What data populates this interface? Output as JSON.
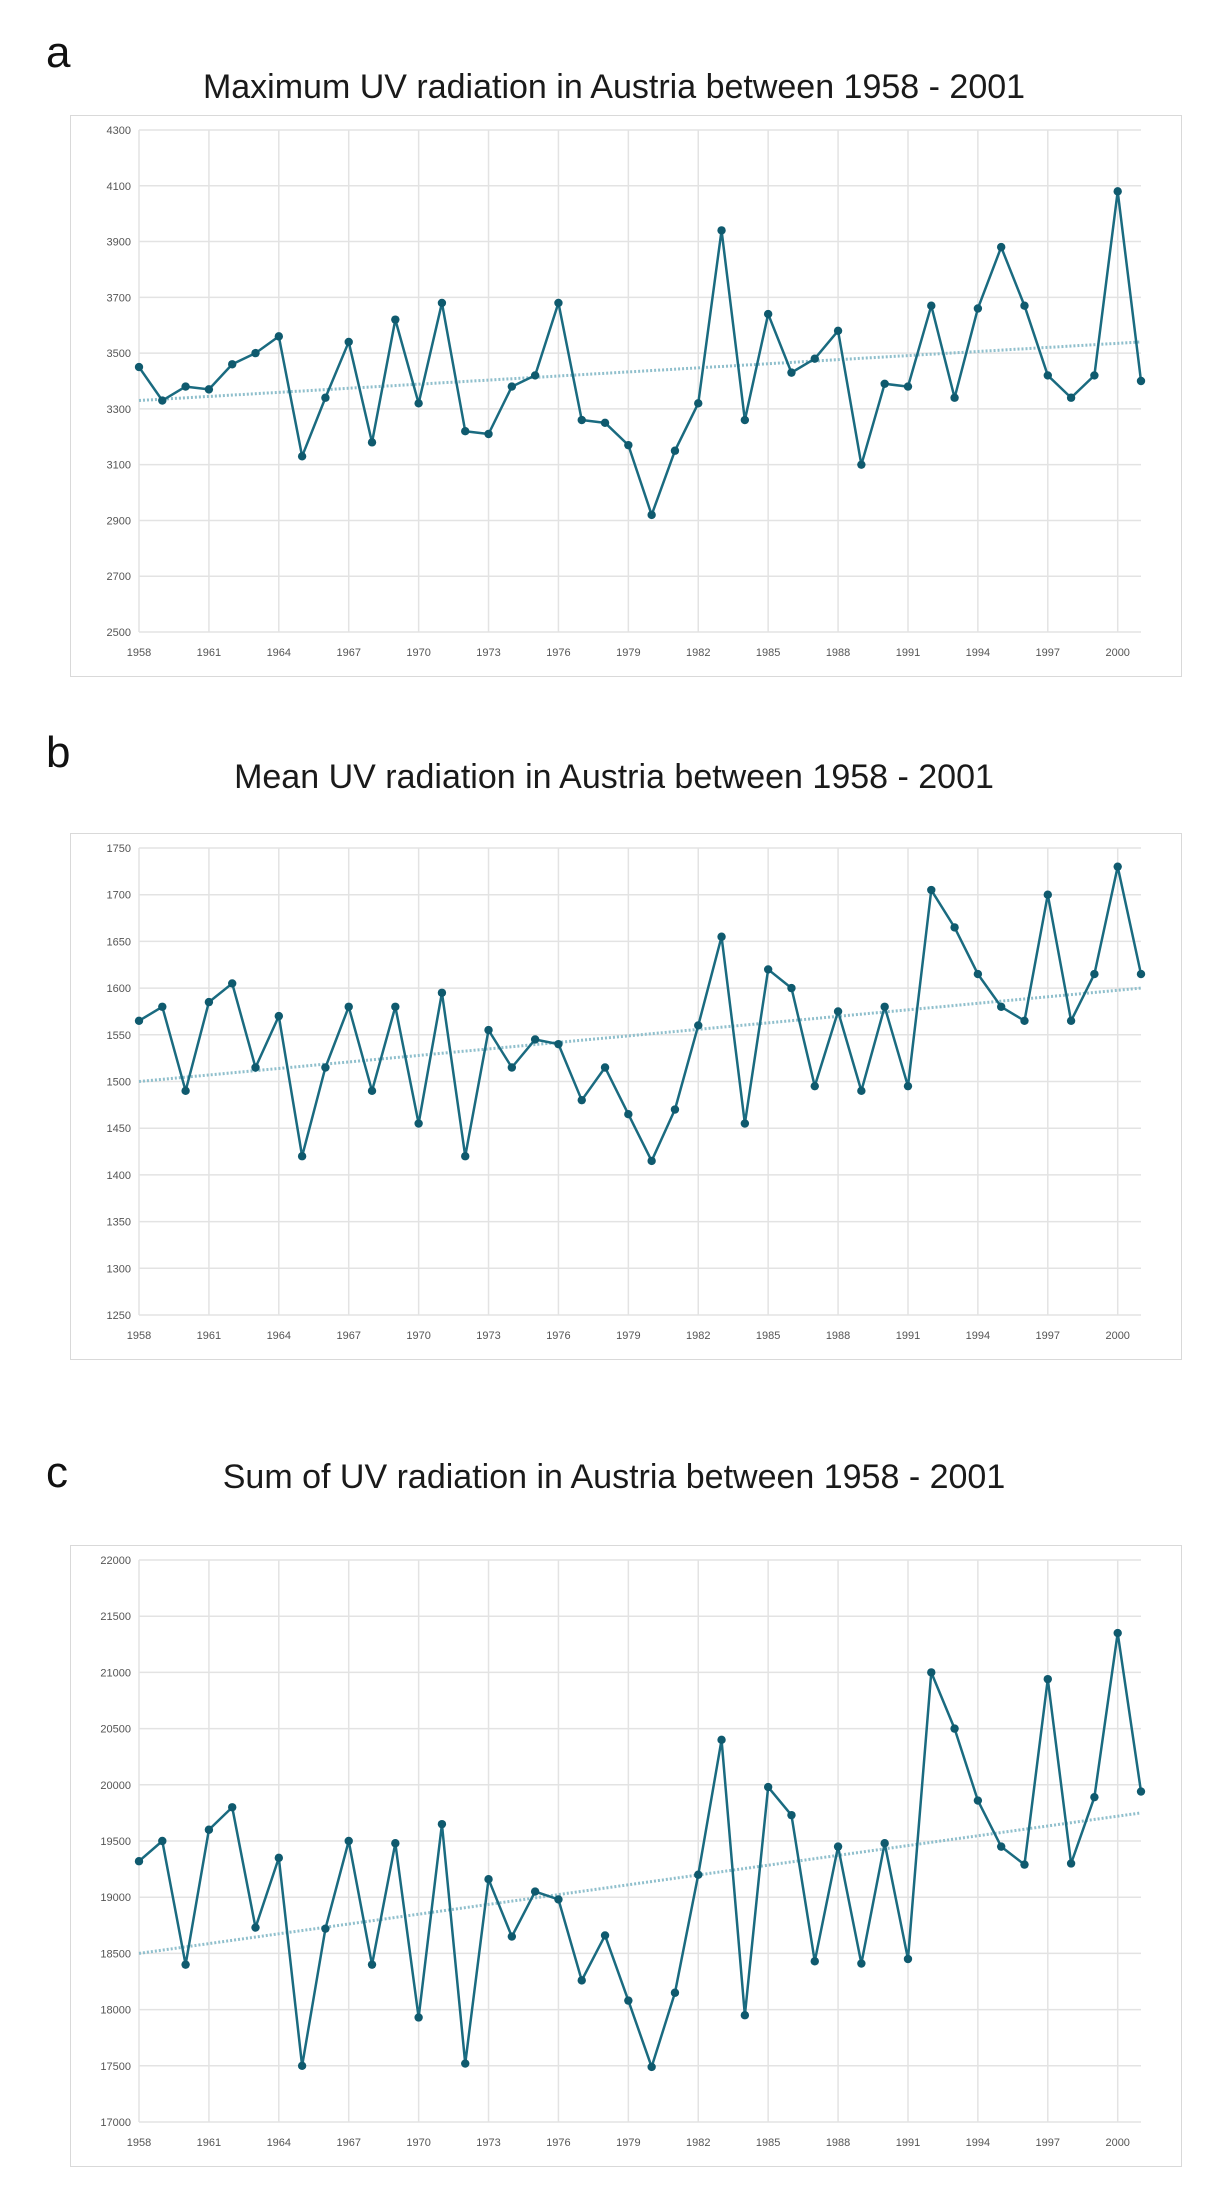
{
  "chart_data": [
    {
      "type": "line",
      "panel_label": "a",
      "title": "Maximum UV radiation in Austria between 1958 - 2001",
      "ylim": [
        2500,
        4300
      ],
      "yticks": [
        2500,
        2700,
        2900,
        3100,
        3300,
        3500,
        3700,
        3900,
        4100,
        4300
      ],
      "xlim": [
        1958,
        2001
      ],
      "xticks": [
        1958,
        1961,
        1964,
        1967,
        1970,
        1973,
        1976,
        1979,
        1982,
        1985,
        1988,
        1991,
        1994,
        1997,
        2000
      ],
      "grid": true,
      "series": [
        {
          "x": [
            1958,
            1959,
            1960,
            1961,
            1962,
            1963,
            1964,
            1965,
            1966,
            1967,
            1968,
            1969,
            1970,
            1971,
            1972,
            1973,
            1974,
            1975,
            1976,
            1977,
            1978,
            1979,
            1980,
            1981,
            1982,
            1983,
            1984,
            1985,
            1986,
            1987,
            1988,
            1989,
            1990,
            1991,
            1992,
            1993,
            1994,
            1995,
            1996,
            1997,
            1998,
            1999,
            2000,
            2001
          ],
          "values": [
            3450,
            3330,
            3380,
            3370,
            3460,
            3500,
            3560,
            3130,
            3340,
            3540,
            3180,
            3620,
            3320,
            3680,
            3220,
            3210,
            3380,
            3420,
            3680,
            3260,
            3250,
            3170,
            2920,
            3150,
            3320,
            3940,
            3260,
            3640,
            3430,
            3480,
            3580,
            3100,
            3390,
            3380,
            3670,
            3340,
            3660,
            3880,
            3670,
            3420,
            3340,
            3420,
            4080,
            3400
          ]
        }
      ],
      "trend": [
        3330,
        3540
      ],
      "colors": {
        "line": "#1a6b80",
        "trend": "#8fbfcc",
        "grid": "#e3e3e3"
      }
    },
    {
      "type": "line",
      "panel_label": "b",
      "title": "Mean UV radiation in Austria between 1958 - 2001",
      "ylim": [
        1250,
        1750
      ],
      "yticks": [
        1250,
        1300,
        1350,
        1400,
        1450,
        1500,
        1550,
        1600,
        1650,
        1700,
        1750
      ],
      "xlim": [
        1958,
        2001
      ],
      "xticks": [
        1958,
        1961,
        1964,
        1967,
        1970,
        1973,
        1976,
        1979,
        1982,
        1985,
        1988,
        1991,
        1994,
        1997,
        2000
      ],
      "grid": true,
      "series": [
        {
          "x": [
            1958,
            1959,
            1960,
            1961,
            1962,
            1963,
            1964,
            1965,
            1966,
            1967,
            1968,
            1969,
            1970,
            1971,
            1972,
            1973,
            1974,
            1975,
            1976,
            1977,
            1978,
            1979,
            1980,
            1981,
            1982,
            1983,
            1984,
            1985,
            1986,
            1987,
            1988,
            1989,
            1990,
            1991,
            1992,
            1993,
            1994,
            1995,
            1996,
            1997,
            1998,
            1999,
            2000,
            2001
          ],
          "values": [
            1565,
            1580,
            1490,
            1585,
            1605,
            1515,
            1570,
            1420,
            1515,
            1580,
            1490,
            1580,
            1455,
            1595,
            1420,
            1555,
            1515,
            1545,
            1540,
            1480,
            1515,
            1465,
            1415,
            1470,
            1560,
            1655,
            1455,
            1620,
            1600,
            1495,
            1575,
            1490,
            1580,
            1495,
            1705,
            1665,
            1615,
            1580,
            1565,
            1700,
            1565,
            1615,
            1730,
            1615
          ]
        }
      ],
      "trend": [
        1500,
        1600
      ],
      "colors": {
        "line": "#1a6b80",
        "trend": "#8fbfcc",
        "grid": "#e3e3e3"
      }
    },
    {
      "type": "line",
      "panel_label": "c",
      "title": "Sum of UV radiation in Austria between 1958 - 2001",
      "ylim": [
        17000,
        22000
      ],
      "yticks": [
        17000,
        17500,
        18000,
        18500,
        19000,
        19500,
        20000,
        20500,
        21000,
        21500,
        22000
      ],
      "xlim": [
        1958,
        2001
      ],
      "xticks": [
        1958,
        1961,
        1964,
        1967,
        1970,
        1973,
        1976,
        1979,
        1982,
        1985,
        1988,
        1991,
        1994,
        1997,
        2000
      ],
      "grid": true,
      "series": [
        {
          "x": [
            1958,
            1959,
            1960,
            1961,
            1962,
            1963,
            1964,
            1965,
            1966,
            1967,
            1968,
            1969,
            1970,
            1971,
            1972,
            1973,
            1974,
            1975,
            1976,
            1977,
            1978,
            1979,
            1980,
            1981,
            1982,
            1983,
            1984,
            1985,
            1986,
            1987,
            1988,
            1989,
            1990,
            1991,
            1992,
            1993,
            1994,
            1995,
            1996,
            1997,
            1998,
            1999,
            2000,
            2001
          ],
          "values": [
            19320,
            19500,
            18400,
            19600,
            19800,
            18730,
            19350,
            17500,
            18720,
            19500,
            18400,
            19480,
            17930,
            19650,
            17520,
            19160,
            18650,
            19050,
            18980,
            18260,
            18660,
            18080,
            17490,
            18150,
            19200,
            20400,
            17950,
            19980,
            19730,
            18430,
            19450,
            18410,
            19480,
            18450,
            21000,
            20500,
            19860,
            19450,
            19290,
            20940,
            19300,
            19890,
            21350,
            19940
          ]
        }
      ],
      "trend": [
        18500,
        19750
      ],
      "colors": {
        "line": "#1a6b80",
        "trend": "#8fbfcc",
        "grid": "#e3e3e3"
      }
    }
  ]
}
